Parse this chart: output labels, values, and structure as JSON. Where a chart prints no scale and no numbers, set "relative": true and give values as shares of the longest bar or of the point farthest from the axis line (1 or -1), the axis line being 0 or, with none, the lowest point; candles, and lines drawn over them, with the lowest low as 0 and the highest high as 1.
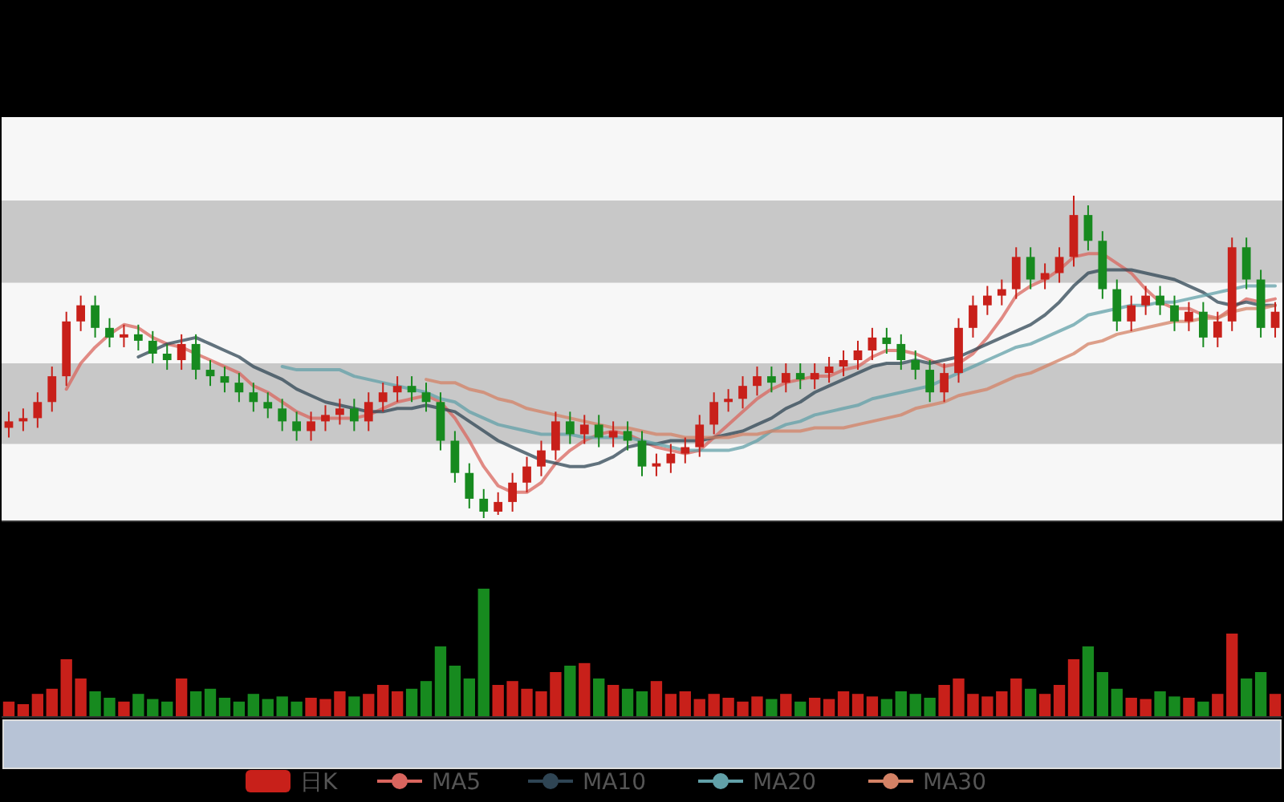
{
  "chart_data": [
    {
      "type": "candlestick",
      "relative": true,
      "legend": "bottom",
      "grid": false,
      "categories": [
        null,
        null,
        null,
        null,
        null,
        null,
        null,
        null,
        null,
        null,
        null,
        null,
        null,
        null,
        null,
        null,
        null,
        null,
        null,
        null,
        null,
        null,
        null,
        null,
        null,
        null,
        null,
        null,
        null,
        null,
        null,
        null,
        null,
        null,
        null,
        null,
        null,
        null,
        null,
        null,
        null,
        null,
        null,
        null,
        null,
        null,
        null,
        null,
        null,
        null,
        null,
        null,
        null,
        null,
        null,
        null,
        null,
        null,
        null,
        null,
        null,
        null,
        null,
        null,
        null,
        null,
        null,
        null,
        null,
        null,
        null,
        null,
        null,
        null,
        null,
        null,
        null,
        null,
        null,
        null,
        null,
        null,
        null,
        null,
        null,
        null,
        null,
        null,
        null
      ],
      "bands": [
        {
          "axis": "y",
          "from": 0.73,
          "to": 0.985,
          "color": "#c8c8c8"
        },
        {
          "axis": "y",
          "from": 0.23,
          "to": 0.48,
          "color": "#c8c8c8"
        }
      ],
      "series": [
        {
          "name": "日K",
          "type": "candlestick",
          "colors": [
            "#c8201a",
            "#c8201a",
            "#c8201a",
            "#c8201a",
            "#c8201a",
            "#c8201a",
            "#178a1f",
            "#178a1f",
            "#c8201a",
            "#178a1f",
            "#178a1f",
            "#178a1f",
            "#c8201a",
            "#178a1f",
            "#178a1f",
            "#178a1f",
            "#178a1f",
            "#178a1f",
            "#178a1f",
            "#178a1f",
            "#178a1f",
            "#c8201a",
            "#c8201a",
            "#c8201a",
            "#178a1f",
            "#c8201a",
            "#c8201a",
            "#c8201a",
            "#178a1f",
            "#178a1f",
            "#178a1f",
            "#178a1f",
            "#178a1f",
            "#178a1f",
            "#c8201a",
            "#c8201a",
            "#c8201a",
            "#c8201a",
            "#c8201a",
            "#178a1f",
            "#c8201a",
            "#178a1f",
            "#c8201a",
            "#178a1f",
            "#178a1f",
            "#c8201a",
            "#c8201a",
            "#c8201a",
            "#c8201a",
            "#c8201a",
            "#c8201a",
            "#c8201a",
            "#c8201a",
            "#178a1f",
            "#c8201a",
            "#178a1f",
            "#c8201a",
            "#c8201a",
            "#c8201a",
            "#c8201a",
            "#c8201a",
            "#178a1f",
            "#178a1f",
            "#178a1f",
            "#178a1f",
            "#c8201a",
            "#c8201a",
            "#c8201a",
            "#c8201a",
            "#c8201a",
            "#c8201a",
            "#178a1f",
            "#c8201a",
            "#c8201a",
            "#c8201a",
            "#178a1f",
            "#178a1f",
            "#178a1f",
            "#c8201a",
            "#c8201a",
            "#178a1f",
            "#178a1f",
            "#c8201a",
            "#178a1f",
            "#c8201a",
            "#c8201a",
            "#178a1f",
            "#178a1f",
            "#c8201a"
          ],
          "ohlc": [
            [
              0.28,
              0.33,
              0.25,
              0.3
            ],
            [
              0.3,
              0.34,
              0.27,
              0.31
            ],
            [
              0.31,
              0.39,
              0.28,
              0.36
            ],
            [
              0.36,
              0.47,
              0.33,
              0.44
            ],
            [
              0.44,
              0.64,
              0.41,
              0.61
            ],
            [
              0.61,
              0.69,
              0.58,
              0.66
            ],
            [
              0.66,
              0.69,
              0.56,
              0.59
            ],
            [
              0.59,
              0.62,
              0.53,
              0.56
            ],
            [
              0.56,
              0.6,
              0.53,
              0.57
            ],
            [
              0.57,
              0.6,
              0.52,
              0.55
            ],
            [
              0.55,
              0.58,
              0.48,
              0.51
            ],
            [
              0.51,
              0.54,
              0.46,
              0.49
            ],
            [
              0.49,
              0.57,
              0.46,
              0.54
            ],
            [
              0.54,
              0.57,
              0.43,
              0.46
            ],
            [
              0.46,
              0.49,
              0.41,
              0.44
            ],
            [
              0.44,
              0.47,
              0.39,
              0.42
            ],
            [
              0.42,
              0.45,
              0.36,
              0.39
            ],
            [
              0.39,
              0.42,
              0.33,
              0.36
            ],
            [
              0.36,
              0.39,
              0.31,
              0.34
            ],
            [
              0.34,
              0.37,
              0.27,
              0.3
            ],
            [
              0.3,
              0.33,
              0.24,
              0.27
            ],
            [
              0.27,
              0.33,
              0.24,
              0.3
            ],
            [
              0.3,
              0.35,
              0.27,
              0.32
            ],
            [
              0.32,
              0.37,
              0.29,
              0.34
            ],
            [
              0.34,
              0.37,
              0.27,
              0.3
            ],
            [
              0.3,
              0.39,
              0.27,
              0.36
            ],
            [
              0.36,
              0.42,
              0.33,
              0.39
            ],
            [
              0.39,
              0.44,
              0.36,
              0.41
            ],
            [
              0.41,
              0.44,
              0.36,
              0.39
            ],
            [
              0.39,
              0.42,
              0.33,
              0.36
            ],
            [
              0.36,
              0.39,
              0.21,
              0.24
            ],
            [
              0.24,
              0.27,
              0.11,
              0.14
            ],
            [
              0.14,
              0.17,
              0.03,
              0.06
            ],
            [
              0.06,
              0.09,
              0,
              0.02
            ],
            [
              0.02,
              0.08,
              0.01,
              0.05
            ],
            [
              0.05,
              0.14,
              0.02,
              0.11
            ],
            [
              0.11,
              0.19,
              0.08,
              0.16
            ],
            [
              0.16,
              0.24,
              0.13,
              0.21
            ],
            [
              0.21,
              0.33,
              0.18,
              0.3
            ],
            [
              0.3,
              0.33,
              0.23,
              0.26
            ],
            [
              0.26,
              0.32,
              0.23,
              0.29
            ],
            [
              0.29,
              0.32,
              0.22,
              0.25
            ],
            [
              0.25,
              0.3,
              0.22,
              0.27
            ],
            [
              0.27,
              0.3,
              0.21,
              0.24
            ],
            [
              0.24,
              0.27,
              0.13,
              0.16
            ],
            [
              0.16,
              0.2,
              0.13,
              0.17
            ],
            [
              0.17,
              0.23,
              0.14,
              0.2
            ],
            [
              0.2,
              0.25,
              0.17,
              0.22
            ],
            [
              0.22,
              0.32,
              0.19,
              0.29
            ],
            [
              0.29,
              0.39,
              0.26,
              0.36
            ],
            [
              0.36,
              0.4,
              0.33,
              0.37
            ],
            [
              0.37,
              0.44,
              0.34,
              0.41
            ],
            [
              0.41,
              0.47,
              0.38,
              0.44
            ],
            [
              0.44,
              0.47,
              0.39,
              0.42
            ],
            [
              0.42,
              0.48,
              0.39,
              0.45
            ],
            [
              0.45,
              0.48,
              0.4,
              0.43
            ],
            [
              0.43,
              0.48,
              0.4,
              0.45
            ],
            [
              0.45,
              0.5,
              0.42,
              0.47
            ],
            [
              0.47,
              0.52,
              0.44,
              0.49
            ],
            [
              0.49,
              0.55,
              0.46,
              0.52
            ],
            [
              0.52,
              0.59,
              0.49,
              0.56
            ],
            [
              0.56,
              0.59,
              0.51,
              0.54
            ],
            [
              0.54,
              0.57,
              0.46,
              0.49
            ],
            [
              0.49,
              0.52,
              0.43,
              0.46
            ],
            [
              0.46,
              0.49,
              0.36,
              0.39
            ],
            [
              0.39,
              0.48,
              0.36,
              0.45
            ],
            [
              0.45,
              0.62,
              0.42,
              0.59
            ],
            [
              0.59,
              0.69,
              0.56,
              0.66
            ],
            [
              0.66,
              0.72,
              0.63,
              0.69
            ],
            [
              0.69,
              0.74,
              0.66,
              0.71
            ],
            [
              0.71,
              0.84,
              0.68,
              0.81
            ],
            [
              0.81,
              0.84,
              0.71,
              0.74
            ],
            [
              0.74,
              0.79,
              0.71,
              0.76
            ],
            [
              0.76,
              0.84,
              0.73,
              0.81
            ],
            [
              0.81,
              1,
              0.78,
              0.94
            ],
            [
              0.94,
              0.97,
              0.83,
              0.86
            ],
            [
              0.86,
              0.89,
              0.68,
              0.71
            ],
            [
              0.71,
              0.74,
              0.58,
              0.61
            ],
            [
              0.61,
              0.69,
              0.58,
              0.66
            ],
            [
              0.66,
              0.72,
              0.63,
              0.69
            ],
            [
              0.69,
              0.72,
              0.63,
              0.66
            ],
            [
              0.66,
              0.69,
              0.58,
              0.61
            ],
            [
              0.61,
              0.67,
              0.58,
              0.64
            ],
            [
              0.64,
              0.67,
              0.53,
              0.56
            ],
            [
              0.56,
              0.64,
              0.53,
              0.61
            ],
            [
              0.61,
              0.87,
              0.58,
              0.84
            ],
            [
              0.84,
              0.87,
              0.71,
              0.74
            ],
            [
              0.74,
              0.77,
              0.56,
              0.59
            ],
            [
              0.59,
              0.67,
              0.56,
              0.64
            ]
          ]
        },
        {
          "name": "MA5",
          "type": "line",
          "color": "#d9655e",
          "values": [
            null,
            null,
            null,
            null,
            0.4,
            0.48,
            0.53,
            0.57,
            0.6,
            0.59,
            0.56,
            0.54,
            0.53,
            0.51,
            0.49,
            0.47,
            0.45,
            0.41,
            0.39,
            0.36,
            0.33,
            0.31,
            0.31,
            0.31,
            0.31,
            0.32,
            0.34,
            0.36,
            0.37,
            0.38,
            0.36,
            0.31,
            0.24,
            0.16,
            0.1,
            0.08,
            0.08,
            0.11,
            0.17,
            0.21,
            0.24,
            0.26,
            0.27,
            0.26,
            0.24,
            0.22,
            0.21,
            0.2,
            0.21,
            0.25,
            0.29,
            0.33,
            0.37,
            0.4,
            0.42,
            0.43,
            0.44,
            0.44,
            0.46,
            0.47,
            0.5,
            0.52,
            0.52,
            0.51,
            0.49,
            0.47,
            0.48,
            0.51,
            0.56,
            0.62,
            0.69,
            0.72,
            0.74,
            0.77,
            0.81,
            0.82,
            0.82,
            0.79,
            0.76,
            0.71,
            0.67,
            0.65,
            0.65,
            0.63,
            0.62,
            0.65,
            0.68,
            0.67,
            0.68
          ]
        },
        {
          "name": "MA10",
          "type": "line",
          "color": "#2f4554",
          "values": [
            null,
            null,
            null,
            null,
            null,
            null,
            null,
            null,
            null,
            0.5,
            0.52,
            0.54,
            0.55,
            0.56,
            0.54,
            0.52,
            0.5,
            0.47,
            0.45,
            0.43,
            0.4,
            0.38,
            0.36,
            0.35,
            0.34,
            0.33,
            0.33,
            0.34,
            0.34,
            0.35,
            0.34,
            0.33,
            0.3,
            0.27,
            0.24,
            0.22,
            0.2,
            0.18,
            0.17,
            0.16,
            0.16,
            0.17,
            0.19,
            0.22,
            0.23,
            0.23,
            0.24,
            0.24,
            0.24,
            0.25,
            0.26,
            0.27,
            0.29,
            0.31,
            0.34,
            0.36,
            0.39,
            0.41,
            0.43,
            0.45,
            0.47,
            0.48,
            0.48,
            0.49,
            0.48,
            0.49,
            0.5,
            0.52,
            0.54,
            0.56,
            0.58,
            0.6,
            0.63,
            0.67,
            0.72,
            0.76,
            0.77,
            0.77,
            0.77,
            0.76,
            0.75,
            0.74,
            0.72,
            0.7,
            0.67,
            0.66,
            0.67,
            0.66,
            0.66
          ]
        },
        {
          "name": "MA20",
          "type": "line",
          "color": "#61a0a8",
          "values": [
            null,
            null,
            null,
            null,
            null,
            null,
            null,
            null,
            null,
            null,
            null,
            null,
            null,
            null,
            null,
            null,
            null,
            null,
            null,
            0.47,
            0.46,
            0.46,
            0.46,
            0.46,
            0.44,
            0.43,
            0.42,
            0.41,
            0.4,
            0.39,
            0.37,
            0.36,
            0.33,
            0.31,
            0.29,
            0.28,
            0.27,
            0.26,
            0.26,
            0.26,
            0.25,
            0.25,
            0.25,
            0.25,
            0.24,
            0.23,
            0.22,
            0.21,
            0.21,
            0.21,
            0.21,
            0.22,
            0.24,
            0.27,
            0.29,
            0.3,
            0.32,
            0.33,
            0.34,
            0.35,
            0.37,
            0.38,
            0.39,
            0.4,
            0.41,
            0.43,
            0.45,
            0.47,
            0.49,
            0.51,
            0.53,
            0.54,
            0.56,
            0.58,
            0.6,
            0.63,
            0.64,
            0.65,
            0.66,
            0.66,
            0.67,
            0.67,
            0.68,
            0.69,
            0.7,
            0.71,
            0.72,
            0.72,
            0.72
          ]
        },
        {
          "name": "MA30",
          "type": "line",
          "color": "#d48265",
          "values": [
            null,
            null,
            null,
            null,
            null,
            null,
            null,
            null,
            null,
            null,
            null,
            null,
            null,
            null,
            null,
            null,
            null,
            null,
            null,
            null,
            null,
            null,
            null,
            null,
            null,
            null,
            null,
            null,
            null,
            0.43,
            0.42,
            0.42,
            0.4,
            0.39,
            0.37,
            0.36,
            0.34,
            0.33,
            0.32,
            0.31,
            0.3,
            0.29,
            0.28,
            0.28,
            0.27,
            0.26,
            0.26,
            0.25,
            0.25,
            0.25,
            0.25,
            0.26,
            0.26,
            0.27,
            0.27,
            0.27,
            0.28,
            0.28,
            0.28,
            0.29,
            0.3,
            0.31,
            0.32,
            0.34,
            0.35,
            0.36,
            0.38,
            0.39,
            0.4,
            0.42,
            0.44,
            0.45,
            0.47,
            0.49,
            0.51,
            0.54,
            0.55,
            0.57,
            0.58,
            0.59,
            0.6,
            0.61,
            0.61,
            0.62,
            0.62,
            0.64,
            0.65,
            0.65,
            0.66
          ]
        }
      ]
    },
    {
      "type": "bar",
      "relative": true,
      "categories": [
        null,
        null,
        null,
        null,
        null,
        null,
        null,
        null,
        null,
        null,
        null,
        null,
        null,
        null,
        null,
        null,
        null,
        null,
        null,
        null,
        null,
        null,
        null,
        null,
        null,
        null,
        null,
        null,
        null,
        null,
        null,
        null,
        null,
        null,
        null,
        null,
        null,
        null,
        null,
        null,
        null,
        null,
        null,
        null,
        null,
        null,
        null,
        null,
        null,
        null,
        null,
        null,
        null,
        null,
        null,
        null,
        null,
        null,
        null,
        null,
        null,
        null,
        null,
        null,
        null,
        null,
        null,
        null,
        null,
        null,
        null,
        null,
        null,
        null,
        null,
        null,
        null,
        null,
        null,
        null,
        null,
        null,
        null,
        null,
        null,
        null,
        null,
        null,
        null
      ],
      "values": [
        0.12,
        0.1,
        0.18,
        0.22,
        0.45,
        0.3,
        0.2,
        0.15,
        0.12,
        0.18,
        0.14,
        0.12,
        0.3,
        0.2,
        0.22,
        0.15,
        0.12,
        0.18,
        0.14,
        0.16,
        0.12,
        0.15,
        0.14,
        0.2,
        0.16,
        0.18,
        0.25,
        0.2,
        0.22,
        0.28,
        0.55,
        0.4,
        0.3,
        1,
        0.25,
        0.28,
        0.22,
        0.2,
        0.35,
        0.4,
        0.42,
        0.3,
        0.25,
        0.22,
        0.2,
        0.28,
        0.18,
        0.2,
        0.14,
        0.18,
        0.15,
        0.12,
        0.16,
        0.14,
        0.18,
        0.12,
        0.15,
        0.14,
        0.2,
        0.18,
        0.16,
        0.14,
        0.2,
        0.18,
        0.15,
        0.25,
        0.3,
        0.18,
        0.16,
        0.2,
        0.3,
        0.22,
        0.18,
        0.25,
        0.45,
        0.55,
        0.35,
        0.22,
        0.15,
        0.14,
        0.2,
        0.16,
        0.15,
        0.12,
        0.18,
        0.65,
        0.3,
        0.35,
        0.18
      ],
      "colors": [
        "#c8201a",
        "#c8201a",
        "#c8201a",
        "#c8201a",
        "#c8201a",
        "#c8201a",
        "#178a1f",
        "#178a1f",
        "#c8201a",
        "#178a1f",
        "#178a1f",
        "#178a1f",
        "#c8201a",
        "#178a1f",
        "#178a1f",
        "#178a1f",
        "#178a1f",
        "#178a1f",
        "#178a1f",
        "#178a1f",
        "#178a1f",
        "#c8201a",
        "#c8201a",
        "#c8201a",
        "#178a1f",
        "#c8201a",
        "#c8201a",
        "#c8201a",
        "#178a1f",
        "#178a1f",
        "#178a1f",
        "#178a1f",
        "#178a1f",
        "#178a1f",
        "#c8201a",
        "#c8201a",
        "#c8201a",
        "#c8201a",
        "#c8201a",
        "#178a1f",
        "#c8201a",
        "#178a1f",
        "#c8201a",
        "#178a1f",
        "#178a1f",
        "#c8201a",
        "#c8201a",
        "#c8201a",
        "#c8201a",
        "#c8201a",
        "#c8201a",
        "#c8201a",
        "#c8201a",
        "#178a1f",
        "#c8201a",
        "#178a1f",
        "#c8201a",
        "#c8201a",
        "#c8201a",
        "#c8201a",
        "#c8201a",
        "#178a1f",
        "#178a1f",
        "#178a1f",
        "#178a1f",
        "#c8201a",
        "#c8201a",
        "#c8201a",
        "#c8201a",
        "#c8201a",
        "#c8201a",
        "#178a1f",
        "#c8201a",
        "#c8201a",
        "#c8201a",
        "#178a1f",
        "#178a1f",
        "#178a1f",
        "#c8201a",
        "#c8201a",
        "#178a1f",
        "#178a1f",
        "#c8201a",
        "#178a1f",
        "#c8201a",
        "#c8201a",
        "#178a1f",
        "#178a1f",
        "#c8201a"
      ]
    }
  ]
}
